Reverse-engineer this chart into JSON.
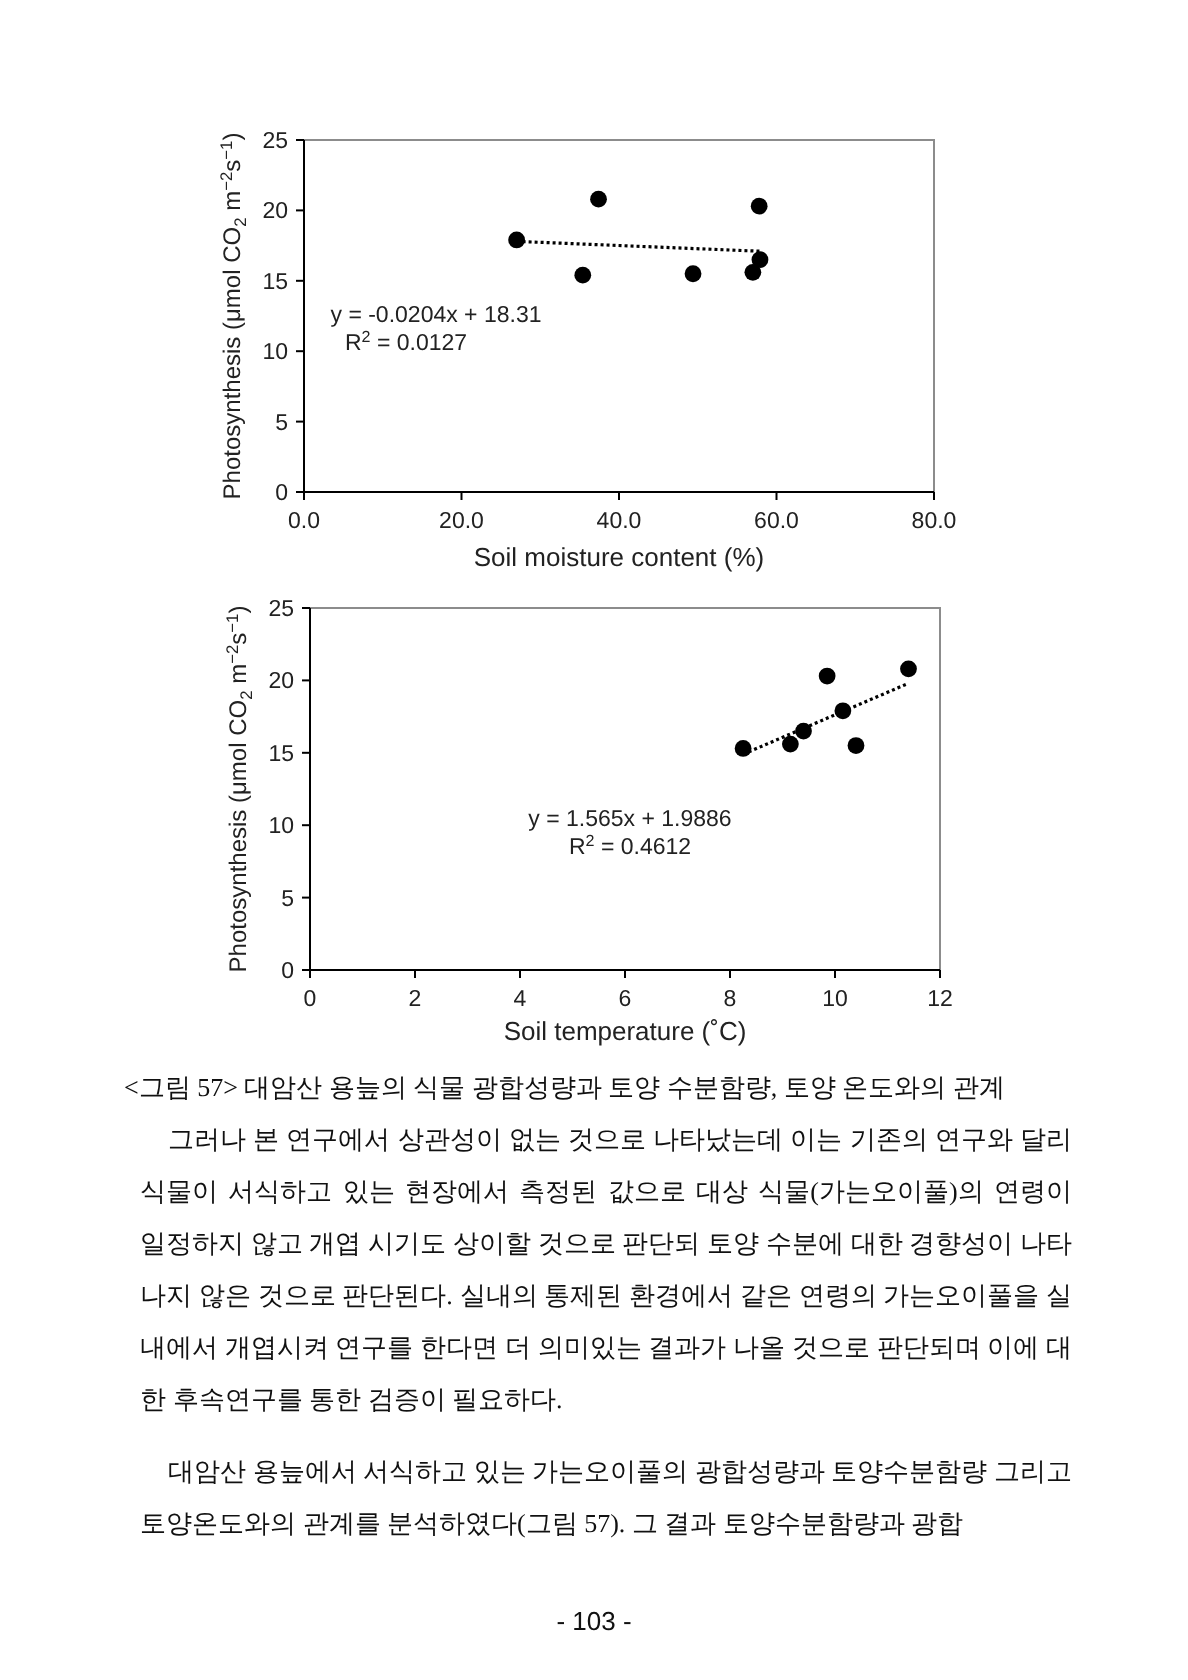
{
  "chart_data": [
    {
      "type": "scatter",
      "xlabel": "Soil moisture content (%)",
      "ylabel": "Photosynthesis (μmol CO$_{2}$ m$^{−2}$s$^{−1}$)",
      "xlim": [
        0,
        80
      ],
      "xticks": [
        {
          "value": 0,
          "label": "0.0"
        },
        {
          "value": 20,
          "label": "20.0"
        },
        {
          "value": 40,
          "label": "40.0"
        },
        {
          "value": 60,
          "label": "60.0"
        },
        {
          "value": 80,
          "label": "80.0"
        }
      ],
      "ylim": [
        0,
        25
      ],
      "yticks": [
        0,
        5,
        10,
        15,
        20,
        25
      ],
      "grid": false,
      "series": [
        {
          "color": "#000000",
          "marker": "circle",
          "x": [
            27.0,
            35.4,
            37.4,
            49.4,
            57.0,
            57.8,
            57.9
          ],
          "values": [
            17.9,
            15.4,
            20.8,
            15.5,
            15.6,
            20.3,
            16.5
          ]
        },
        {
          "type": "line",
          "color": "#000000",
          "line_style": "dotted",
          "x": [
            27.0,
            57.9
          ],
          "values": [
            17.8,
            17.1
          ]
        }
      ],
      "annotations": [
        "y = -0.0204x + 18.31",
        "R$^{2}$ = 0.0127"
      ]
    },
    {
      "type": "scatter",
      "xlabel": "Soil temperature (˚C)",
      "ylabel": "Photosynthesis (μmol CO$_{2}$ m$^{−2}$s$^{−1}$)",
      "xlim": [
        0,
        12
      ],
      "xticks": [
        0,
        2,
        4,
        6,
        8,
        10,
        12
      ],
      "ylim": [
        0,
        25
      ],
      "yticks": [
        0,
        5,
        10,
        15,
        20,
        25
      ],
      "grid": false,
      "series": [
        {
          "color": "#000000",
          "marker": "circle",
          "x": [
            8.25,
            9.15,
            9.4,
            9.85,
            10.15,
            10.4,
            11.4
          ],
          "values": [
            15.3,
            15.6,
            16.5,
            20.3,
            17.9,
            15.5,
            20.8
          ]
        },
        {
          "type": "line",
          "color": "#000000",
          "line_style": "dotted",
          "x": [
            8.25,
            11.4
          ],
          "values": [
            14.9,
            19.8
          ]
        }
      ],
      "annotations": [
        "y = 1.565x + 1.9886",
        "R$^{2}$ = 0.4612",
        "<그림 57> 대암산 용늪의 식물 광합성량과 토양 수분함량, 토양 온도와의 관계",
        "그러나 본 연구에서 상관성이 없는 것으로 나타났는데 이는 기존의 연구와 달리 식물이 서식하고 있는 현장에서 측정된 값으로 대상 식물(가는오이풀)의 연령이 일정하지 않고 개엽 시기도 상이할 것으로 판단되 토양 수분에 대한 경향성이 나타나지 않은 것으로 판단된다. 실내의 통제된 환경에서 같은 연령의 가는오이풀을 실내에서 개엽시켜 연구를 한다면 더 의미있는 결과가 나올 것으로 판단되며 이에 대한 후속연구를 통한 검증이 필요하다.",
        "대암산 용늪에서 서식하고 있는 가는오이풀의 광합성량과 토양수분함량 그리고 토양온도와의 관계를 분석하였다(그림 57). 그 결과 토양수분함량과 광합",
        "- 103 -"
      ]
    }
  ]
}
